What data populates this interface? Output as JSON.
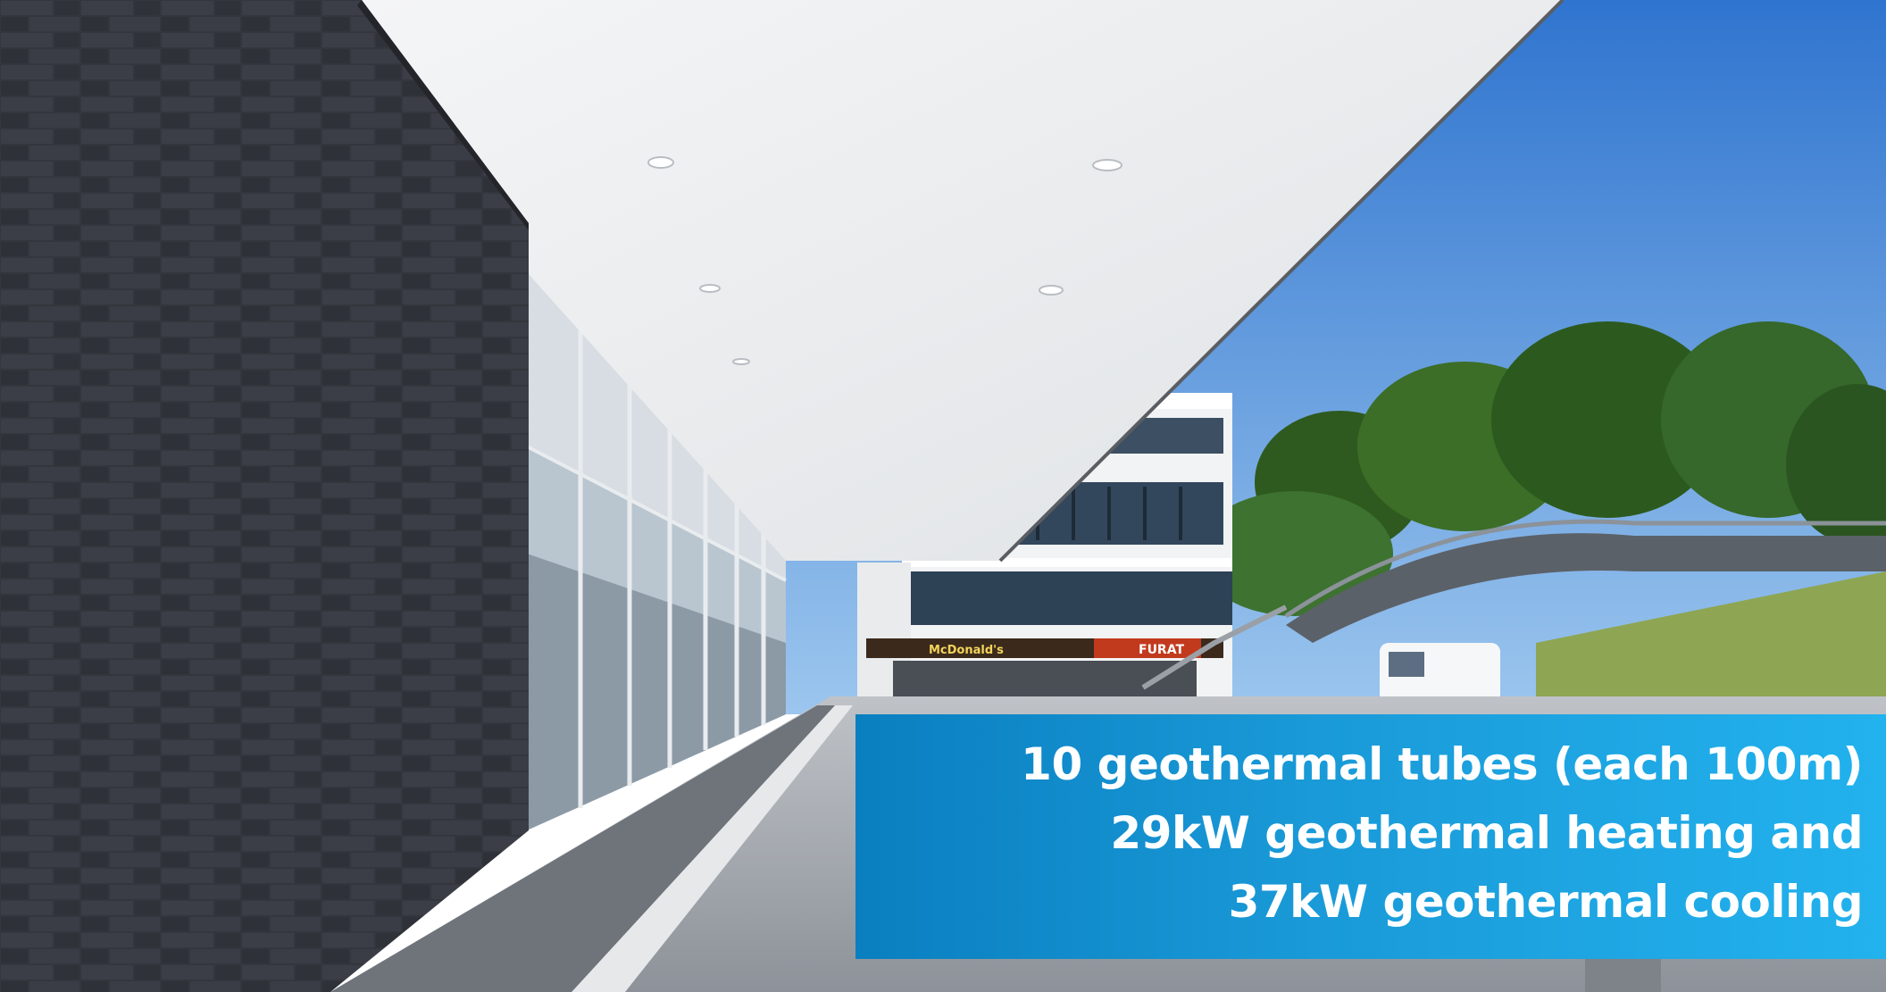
{
  "caption": {
    "line1": "10 geothermal tubes (each 100m)",
    "line2": "29kW geothermal heating and",
    "line3": "37kW geothermal cooling"
  },
  "signs": {
    "restaurant_sign": "McDonald's",
    "shop_sign": "FURAT"
  },
  "colors": {
    "caption_panel": "#1a9ad8",
    "sky": "#3f86d8",
    "brick_wall": "#34363d",
    "canopy": "#eceef0"
  }
}
